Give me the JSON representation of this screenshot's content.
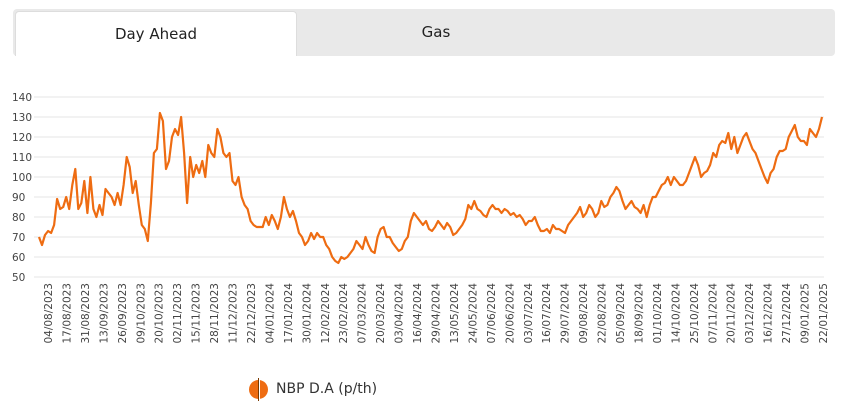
{
  "tabs": [
    {
      "label": "Day Ahead",
      "active": true
    },
    {
      "label": "Gas",
      "active": false
    }
  ],
  "chart_data": {
    "type": "line",
    "title": "",
    "xlabel": "",
    "ylabel": "",
    "ylim": [
      50,
      140
    ],
    "yticks": [
      50,
      60,
      70,
      80,
      90,
      100,
      110,
      120,
      130,
      140
    ],
    "grid": true,
    "legend_position": "bottom",
    "xtick_labels": [
      "04/08/2023",
      "17/08/2023",
      "31/08/2023",
      "13/09/2023",
      "26/09/2023",
      "09/10/2023",
      "20/10/2023",
      "02/11/2023",
      "15/11/2023",
      "28/11/2023",
      "11/12/2023",
      "22/12/2023",
      "04/01/2024",
      "17/01/2024",
      "30/01/2024",
      "12/02/2024",
      "23/02/2024",
      "07/03/2024",
      "20/03/2024",
      "03/04/2024",
      "16/04/2024",
      "29/04/2024",
      "13/05/2024",
      "24/05/2024",
      "07/06/2024",
      "20/06/2024",
      "03/07/2024",
      "16/07/2024",
      "29/07/2024",
      "09/08/2024",
      "22/08/2024",
      "05/09/2024",
      "18/09/2024",
      "01/10/2024",
      "14/10/2024",
      "25/10/2024",
      "07/11/2024",
      "20/11/2024",
      "03/12/2024",
      "16/12/2024",
      "27/12/2024",
      "09/01/2025",
      "22/01/2025"
    ],
    "series": [
      {
        "name": "NBP D.A (p/th)",
        "color": "#ee6c12",
        "values": [
          70,
          66,
          71,
          73,
          72,
          76,
          89,
          84,
          85,
          90,
          84,
          96,
          104,
          84,
          87,
          98,
          82,
          100,
          84,
          80,
          86,
          81,
          94,
          92,
          90,
          86,
          92,
          86,
          96,
          110,
          105,
          92,
          98,
          86,
          76,
          74,
          68,
          87,
          112,
          114,
          132,
          128,
          104,
          108,
          120,
          124,
          121,
          130,
          112,
          87,
          110,
          100,
          106,
          102,
          108,
          100,
          116,
          112,
          110,
          124,
          120,
          112,
          110,
          112,
          98,
          96,
          100,
          90,
          86,
          84,
          78,
          76,
          75,
          75,
          75,
          80,
          76,
          81,
          78,
          74,
          80,
          90,
          84,
          80,
          83,
          78,
          72,
          70,
          66,
          68,
          72,
          69,
          72,
          70,
          70,
          66,
          64,
          60,
          58,
          57,
          60,
          59,
          60,
          62,
          64,
          68,
          66,
          64,
          70,
          66,
          63,
          62,
          70,
          74,
          75,
          70,
          70,
          67,
          65,
          63,
          64,
          68,
          70,
          78,
          82,
          80,
          78,
          76,
          78,
          74,
          73,
          75,
          78,
          76,
          74,
          77,
          75,
          71,
          72,
          74,
          76,
          79,
          86,
          84,
          88,
          84,
          83,
          81,
          80,
          84,
          86,
          84,
          84,
          82,
          84,
          83,
          81,
          82,
          80,
          81,
          79,
          76,
          78,
          78,
          80,
          76,
          73,
          73,
          74,
          72,
          76,
          74,
          74,
          73,
          72,
          76,
          78,
          80,
          82,
          85,
          80,
          82,
          86,
          84,
          80,
          82,
          88,
          85,
          86,
          90,
          92,
          95,
          93,
          88,
          84,
          86,
          88,
          85,
          84,
          82,
          86,
          80,
          86,
          90,
          90,
          93,
          96,
          97,
          100,
          96,
          100,
          98,
          96,
          96,
          98,
          102,
          106,
          110,
          106,
          100,
          102,
          103,
          106,
          112,
          110,
          116,
          118,
          117,
          122,
          114,
          120,
          112,
          116,
          120,
          122,
          118,
          114,
          112,
          108,
          104,
          100,
          97,
          102,
          104,
          110,
          113,
          113,
          114,
          120,
          123,
          126,
          120,
          118,
          118,
          116,
          124,
          122,
          120,
          124,
          130
        ]
      }
    ]
  }
}
